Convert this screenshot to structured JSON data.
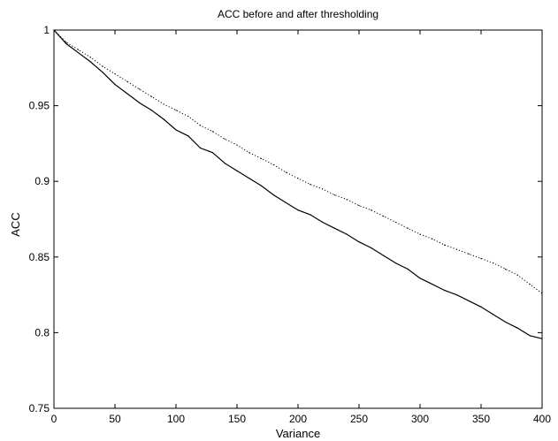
{
  "chart_data": {
    "type": "line",
    "title": "ACC before and after thresholding",
    "xlabel": "Variance",
    "ylabel": "ACC",
    "xlim": [
      0,
      400
    ],
    "ylim": [
      0.75,
      1.0
    ],
    "xticks": [
      "0",
      "50",
      "100",
      "150",
      "200",
      "250",
      "300",
      "350",
      "400"
    ],
    "yticks": [
      "0.75",
      "0.8",
      "0.85",
      "0.9",
      "0.95",
      "1"
    ],
    "grid": false,
    "series": [
      {
        "style": "solid",
        "color": "#000000",
        "x": [
          0,
          10,
          20,
          30,
          40,
          50,
          60,
          70,
          80,
          90,
          100,
          110,
          120,
          130,
          140,
          150,
          160,
          170,
          180,
          190,
          200,
          210,
          220,
          230,
          240,
          250,
          260,
          270,
          280,
          290,
          300,
          310,
          320,
          330,
          340,
          350,
          360,
          370,
          380,
          390,
          400
        ],
        "values": [
          1.0,
          0.991,
          0.985,
          0.979,
          0.972,
          0.964,
          0.958,
          0.952,
          0.947,
          0.941,
          0.934,
          0.93,
          0.922,
          0.919,
          0.912,
          0.907,
          0.902,
          0.897,
          0.891,
          0.886,
          0.881,
          0.878,
          0.873,
          0.869,
          0.865,
          0.86,
          0.856,
          0.851,
          0.846,
          0.842,
          0.836,
          0.832,
          0.828,
          0.825,
          0.821,
          0.817,
          0.812,
          0.807,
          0.803,
          0.798,
          0.796
        ]
      },
      {
        "style": "dotted",
        "color": "#000000",
        "x": [
          0,
          10,
          20,
          30,
          40,
          50,
          60,
          70,
          80,
          90,
          100,
          110,
          120,
          130,
          140,
          150,
          160,
          170,
          180,
          190,
          200,
          210,
          220,
          230,
          240,
          250,
          260,
          270,
          280,
          290,
          300,
          310,
          320,
          330,
          340,
          350,
          360,
          370,
          380,
          390,
          400
        ],
        "values": [
          1.0,
          0.992,
          0.987,
          0.982,
          0.976,
          0.971,
          0.966,
          0.961,
          0.956,
          0.951,
          0.947,
          0.943,
          0.937,
          0.933,
          0.928,
          0.924,
          0.919,
          0.915,
          0.911,
          0.906,
          0.902,
          0.898,
          0.895,
          0.891,
          0.888,
          0.884,
          0.881,
          0.877,
          0.873,
          0.869,
          0.865,
          0.862,
          0.858,
          0.855,
          0.852,
          0.849,
          0.846,
          0.842,
          0.838,
          0.832,
          0.826
        ]
      }
    ]
  }
}
